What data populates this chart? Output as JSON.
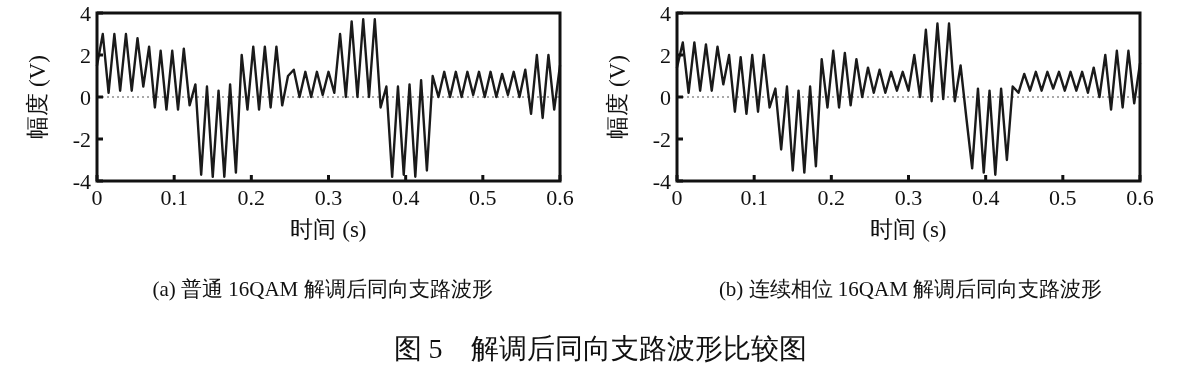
{
  "chart_data": [
    {
      "type": "line",
      "title": "(a) 普通 16QAM 解调后同向支路波形",
      "xlabel": "时间 (s)",
      "ylabel": "幅度 (V)",
      "xlim": [
        0,
        0.6
      ],
      "ylim": [
        -4,
        4
      ],
      "xticks": [
        0,
        0.1,
        0.2,
        0.3,
        0.4,
        0.5,
        0.6
      ],
      "yticks": [
        -4,
        -2,
        0,
        2,
        4
      ],
      "grid": false,
      "marker": "none",
      "line_style": "solid",
      "ref_lines": [
        {
          "axis": "y",
          "value": 0,
          "line_style": "dotted",
          "color": "#555555"
        }
      ],
      "annotations": [
        "图 5　解调后同向支路波形比较图"
      ],
      "x": [
        0,
        0.0075,
        0.015,
        0.0225,
        0.03,
        0.0375,
        0.045,
        0.0525,
        0.06,
        0.0675,
        0.075,
        0.0825,
        0.09,
        0.0975,
        0.105,
        0.1125,
        0.12,
        0.1275,
        0.135,
        0.1425,
        0.15,
        0.1575,
        0.165,
        0.1725,
        0.18,
        0.1875,
        0.195,
        0.2025,
        0.21,
        0.2175,
        0.225,
        0.2325,
        0.24,
        0.2475,
        0.255,
        0.2625,
        0.27,
        0.2775,
        0.285,
        0.2925,
        0.3,
        0.3075,
        0.315,
        0.3225,
        0.33,
        0.3375,
        0.345,
        0.3525,
        0.36,
        0.3675,
        0.375,
        0.3825,
        0.39,
        0.3975,
        0.405,
        0.4125,
        0.42,
        0.4275,
        0.435,
        0.4425,
        0.45,
        0.4575,
        0.465,
        0.4725,
        0.48,
        0.4875,
        0.495,
        0.5025,
        0.51,
        0.5175,
        0.525,
        0.5325,
        0.54,
        0.5475,
        0.555,
        0.5625,
        0.57,
        0.5775,
        0.585,
        0.5925,
        0.6
      ],
      "series": [
        {
          "color": "#1a1a1a",
          "values": [
            1.5,
            3.0,
            0.2,
            3.0,
            0.3,
            3.0,
            0.3,
            2.8,
            0.5,
            2.4,
            -0.5,
            2.2,
            -0.6,
            2.2,
            -0.6,
            2.3,
            -0.4,
            0.6,
            -3.7,
            0.5,
            -3.8,
            0.3,
            -3.8,
            0.6,
            -3.6,
            2.0,
            -0.6,
            2.4,
            -0.6,
            2.4,
            -0.5,
            2.4,
            -0.4,
            1.0,
            1.3,
            0.0,
            1.2,
            0.0,
            1.2,
            0.1,
            1.2,
            0.2,
            3.0,
            0.0,
            3.6,
            0.0,
            3.7,
            0.0,
            3.7,
            -0.5,
            0.5,
            -3.8,
            0.5,
            -3.7,
            0.6,
            -3.8,
            0.8,
            -3.5,
            1.0,
            0.0,
            1.2,
            0.0,
            1.2,
            0.0,
            1.2,
            0.1,
            1.2,
            0.0,
            1.2,
            0.0,
            1.1,
            0.1,
            1.2,
            0.0,
            1.3,
            -0.8,
            2.0,
            -1.0,
            2.0,
            -0.6,
            1.5
          ]
        }
      ]
    },
    {
      "type": "line",
      "title": "(b) 连续相位 16QAM 解调后同向支路波形",
      "xlabel": "时间 (s)",
      "ylabel": "幅度 (V)",
      "xlim": [
        0,
        0.6
      ],
      "ylim": [
        -4,
        4
      ],
      "xticks": [
        0,
        0.1,
        0.2,
        0.3,
        0.4,
        0.5,
        0.6
      ],
      "yticks": [
        -4,
        -2,
        0,
        2,
        4
      ],
      "grid": false,
      "marker": "none",
      "line_style": "solid",
      "ref_lines": [
        {
          "axis": "y",
          "value": 0,
          "line_style": "dotted",
          "color": "#555555"
        }
      ],
      "x": [
        0,
        0.0075,
        0.015,
        0.0225,
        0.03,
        0.0375,
        0.045,
        0.0525,
        0.06,
        0.0675,
        0.075,
        0.0825,
        0.09,
        0.0975,
        0.105,
        0.1125,
        0.12,
        0.1275,
        0.135,
        0.1425,
        0.15,
        0.1575,
        0.165,
        0.1725,
        0.18,
        0.1875,
        0.195,
        0.2025,
        0.21,
        0.2175,
        0.225,
        0.2325,
        0.24,
        0.2475,
        0.255,
        0.2625,
        0.27,
        0.2775,
        0.285,
        0.2925,
        0.3,
        0.3075,
        0.315,
        0.3225,
        0.33,
        0.3375,
        0.345,
        0.3525,
        0.36,
        0.3675,
        0.375,
        0.3825,
        0.39,
        0.3975,
        0.405,
        0.4125,
        0.42,
        0.4275,
        0.435,
        0.4425,
        0.45,
        0.4575,
        0.465,
        0.4725,
        0.48,
        0.4875,
        0.495,
        0.5025,
        0.51,
        0.5175,
        0.525,
        0.5325,
        0.54,
        0.5475,
        0.555,
        0.5625,
        0.57,
        0.5775,
        0.585,
        0.5925,
        0.6
      ],
      "series": [
        {
          "color": "#1a1a1a",
          "values": [
            1.4,
            2.6,
            0.2,
            2.6,
            0.3,
            2.5,
            0.3,
            2.4,
            0.6,
            2.0,
            -0.7,
            1.9,
            -0.8,
            2.0,
            -0.7,
            2.0,
            -0.5,
            0.4,
            -2.5,
            0.5,
            -3.5,
            0.3,
            -3.6,
            0.5,
            -3.3,
            1.8,
            -0.5,
            2.2,
            -0.5,
            2.1,
            -0.4,
            1.8,
            0.0,
            1.4,
            0.2,
            1.3,
            0.2,
            1.2,
            0.3,
            1.2,
            0.3,
            2.0,
            0.0,
            3.2,
            -0.2,
            3.5,
            -0.1,
            3.5,
            -0.2,
            1.5,
            -1.0,
            -3.4,
            0.4,
            -3.6,
            0.3,
            -3.7,
            0.4,
            -3.0,
            0.5,
            0.2,
            1.1,
            0.3,
            1.2,
            0.3,
            1.2,
            0.4,
            1.2,
            0.3,
            1.2,
            0.3,
            1.2,
            0.2,
            1.4,
            0.0,
            2.0,
            -0.6,
            2.2,
            -0.5,
            2.2,
            -0.3,
            1.6
          ]
        }
      ]
    }
  ]
}
